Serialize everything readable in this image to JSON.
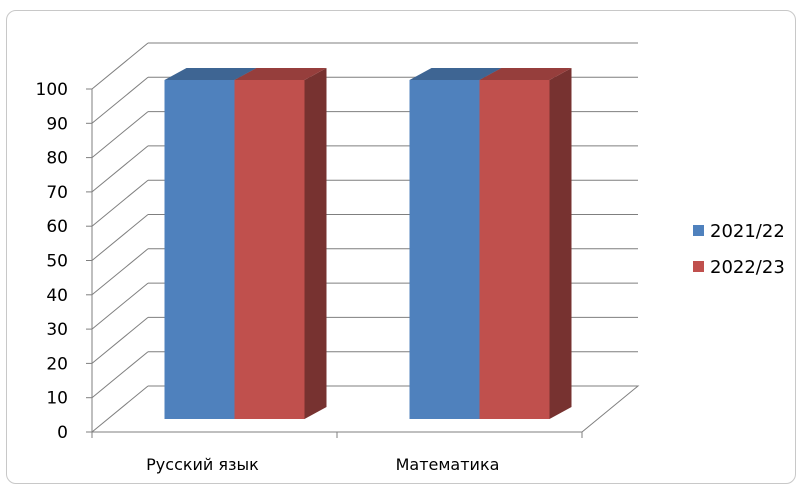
{
  "chart_data": {
    "type": "bar",
    "categories": [
      "Русский язык",
      "Математика"
    ],
    "series": [
      {
        "name": "2021/22",
        "values": [
          100,
          100
        ],
        "color": "#4f81bd"
      },
      {
        "name": "2022/23",
        "values": [
          100,
          100
        ],
        "color": "#c0504d"
      }
    ],
    "ylim": [
      0,
      100
    ],
    "yticks": [
      0,
      10,
      20,
      30,
      40,
      50,
      60,
      70,
      80,
      90,
      100
    ],
    "grid": true,
    "legend_position": "right",
    "style": "3d-clustered-column"
  }
}
